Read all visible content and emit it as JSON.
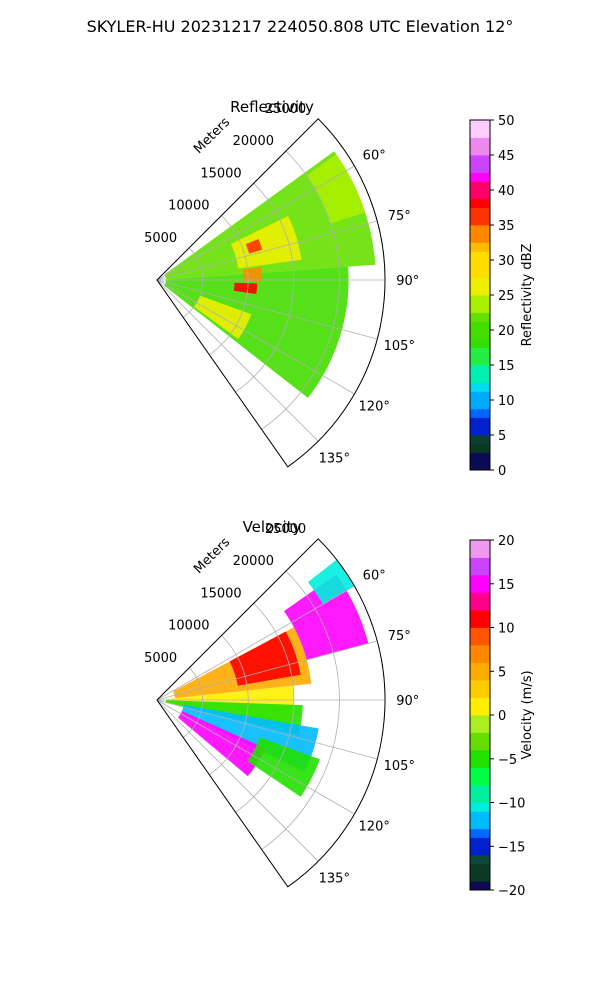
{
  "figure": {
    "title": "SKYLER-HU  20231217  224050.808 UTC Elevation 12°"
  },
  "chart_data": [
    {
      "type": "heatmap",
      "title": "Reflectivity",
      "projection": "polar sector (azimuth vs range)",
      "range_label": "Meters",
      "range_ticks": [
        5000,
        10000,
        15000,
        20000,
        25000
      ],
      "range_tick_labels": [
        "5000",
        "10000",
        "15000",
        "20000",
        "25000"
      ],
      "range_lim": [
        0,
        25000
      ],
      "azimuth_lim_deg": [
        45,
        145
      ],
      "azimuth_ticks_deg": [
        60,
        75,
        90,
        105,
        120,
        135
      ],
      "azimuth_tick_labels": [
        "60°",
        "75°",
        "90°",
        "105°",
        "120°",
        "135°"
      ],
      "grid": true,
      "colorbar": {
        "label": "Reflectivity dBZ",
        "range": [
          0,
          50
        ],
        "ticks": [
          0,
          5,
          10,
          15,
          20,
          25,
          30,
          35,
          40,
          45,
          50
        ],
        "tick_labels": [
          "0",
          "5",
          "10",
          "15",
          "20",
          "25",
          "30",
          "35",
          "40",
          "45",
          "50"
        ],
        "placement": "right"
      },
      "data_coverage_deg": [
        52,
        138
      ],
      "echo_regions": [
        {
          "azimuth_deg": [
            54,
            86
          ],
          "range_m": [
            1000,
            24000
          ],
          "value": 21
        },
        {
          "azimuth_deg": [
            86,
            128
          ],
          "range_m": [
            1000,
            21000
          ],
          "value": 20
        },
        {
          "azimuth_deg": [
            64,
            82
          ],
          "range_m": [
            9000,
            16000
          ],
          "value": 26
        },
        {
          "azimuth_deg": [
            68,
            74
          ],
          "range_m": [
            10500,
            12000
          ],
          "value": 36
        },
        {
          "azimuth_deg": [
            83,
            91
          ],
          "range_m": [
            9500,
            11500
          ],
          "value": 34
        },
        {
          "azimuth_deg": [
            92,
            98
          ],
          "range_m": [
            8500,
            11000
          ],
          "value": 37
        },
        {
          "azimuth_deg": [
            110,
            126
          ],
          "range_m": [
            5000,
            11000
          ],
          "value": 25
        },
        {
          "azimuth_deg": [
            55,
            72
          ],
          "range_m": [
            20000,
            24000
          ],
          "value": 24
        }
      ]
    },
    {
      "type": "heatmap",
      "title": "Velocity",
      "projection": "polar sector (azimuth vs range)",
      "range_label": "Meters",
      "range_ticks": [
        5000,
        10000,
        15000,
        20000,
        25000
      ],
      "range_tick_labels": [
        "5000",
        "10000",
        "15000",
        "20000",
        "25000"
      ],
      "range_lim": [
        0,
        25000
      ],
      "azimuth_lim_deg": [
        45,
        145
      ],
      "azimuth_ticks_deg": [
        60,
        75,
        90,
        105,
        120,
        135
      ],
      "azimuth_tick_labels": [
        "60°",
        "75°",
        "90°",
        "105°",
        "120°",
        "135°"
      ],
      "grid": true,
      "colorbar": {
        "label": "Velocity (m/s)",
        "range": [
          -20,
          20
        ],
        "ticks": [
          -20,
          -15,
          -10,
          -5,
          0,
          5,
          10,
          15,
          20
        ],
        "tick_labels": [
          "−20",
          "−15",
          "−10",
          "−5",
          "0",
          "5",
          "10",
          "15",
          "20"
        ],
        "placement": "right"
      },
      "data_coverage_deg": [
        52,
        138
      ],
      "echo_regions": [
        {
          "azimuth_deg": [
            62,
            84
          ],
          "range_m": [
            2000,
            17000
          ],
          "value": 5
        },
        {
          "azimuth_deg": [
            62,
            80
          ],
          "range_m": [
            9000,
            16000
          ],
          "value": 10
        },
        {
          "azimuth_deg": [
            55,
            75
          ],
          "range_m": [
            17000,
            24000
          ],
          "value": 14
        },
        {
          "azimuth_deg": [
            52,
            60
          ],
          "range_m": [
            21000,
            25000
          ],
          "value": -10
        },
        {
          "azimuth_deg": [
            84,
            100
          ],
          "range_m": [
            1000,
            15000
          ],
          "value": 0
        },
        {
          "azimuth_deg": [
            92,
            104
          ],
          "range_m": [
            1000,
            16000
          ],
          "value": -5
        },
        {
          "azimuth_deg": [
            100,
            116
          ],
          "range_m": [
            3000,
            18000
          ],
          "value": -12
        },
        {
          "azimuth_deg": [
            114,
            130
          ],
          "range_m": [
            3000,
            13000
          ],
          "value": 15
        },
        {
          "azimuth_deg": [
            110,
            124
          ],
          "range_m": [
            12000,
            19000
          ],
          "value": -6
        }
      ]
    }
  ]
}
